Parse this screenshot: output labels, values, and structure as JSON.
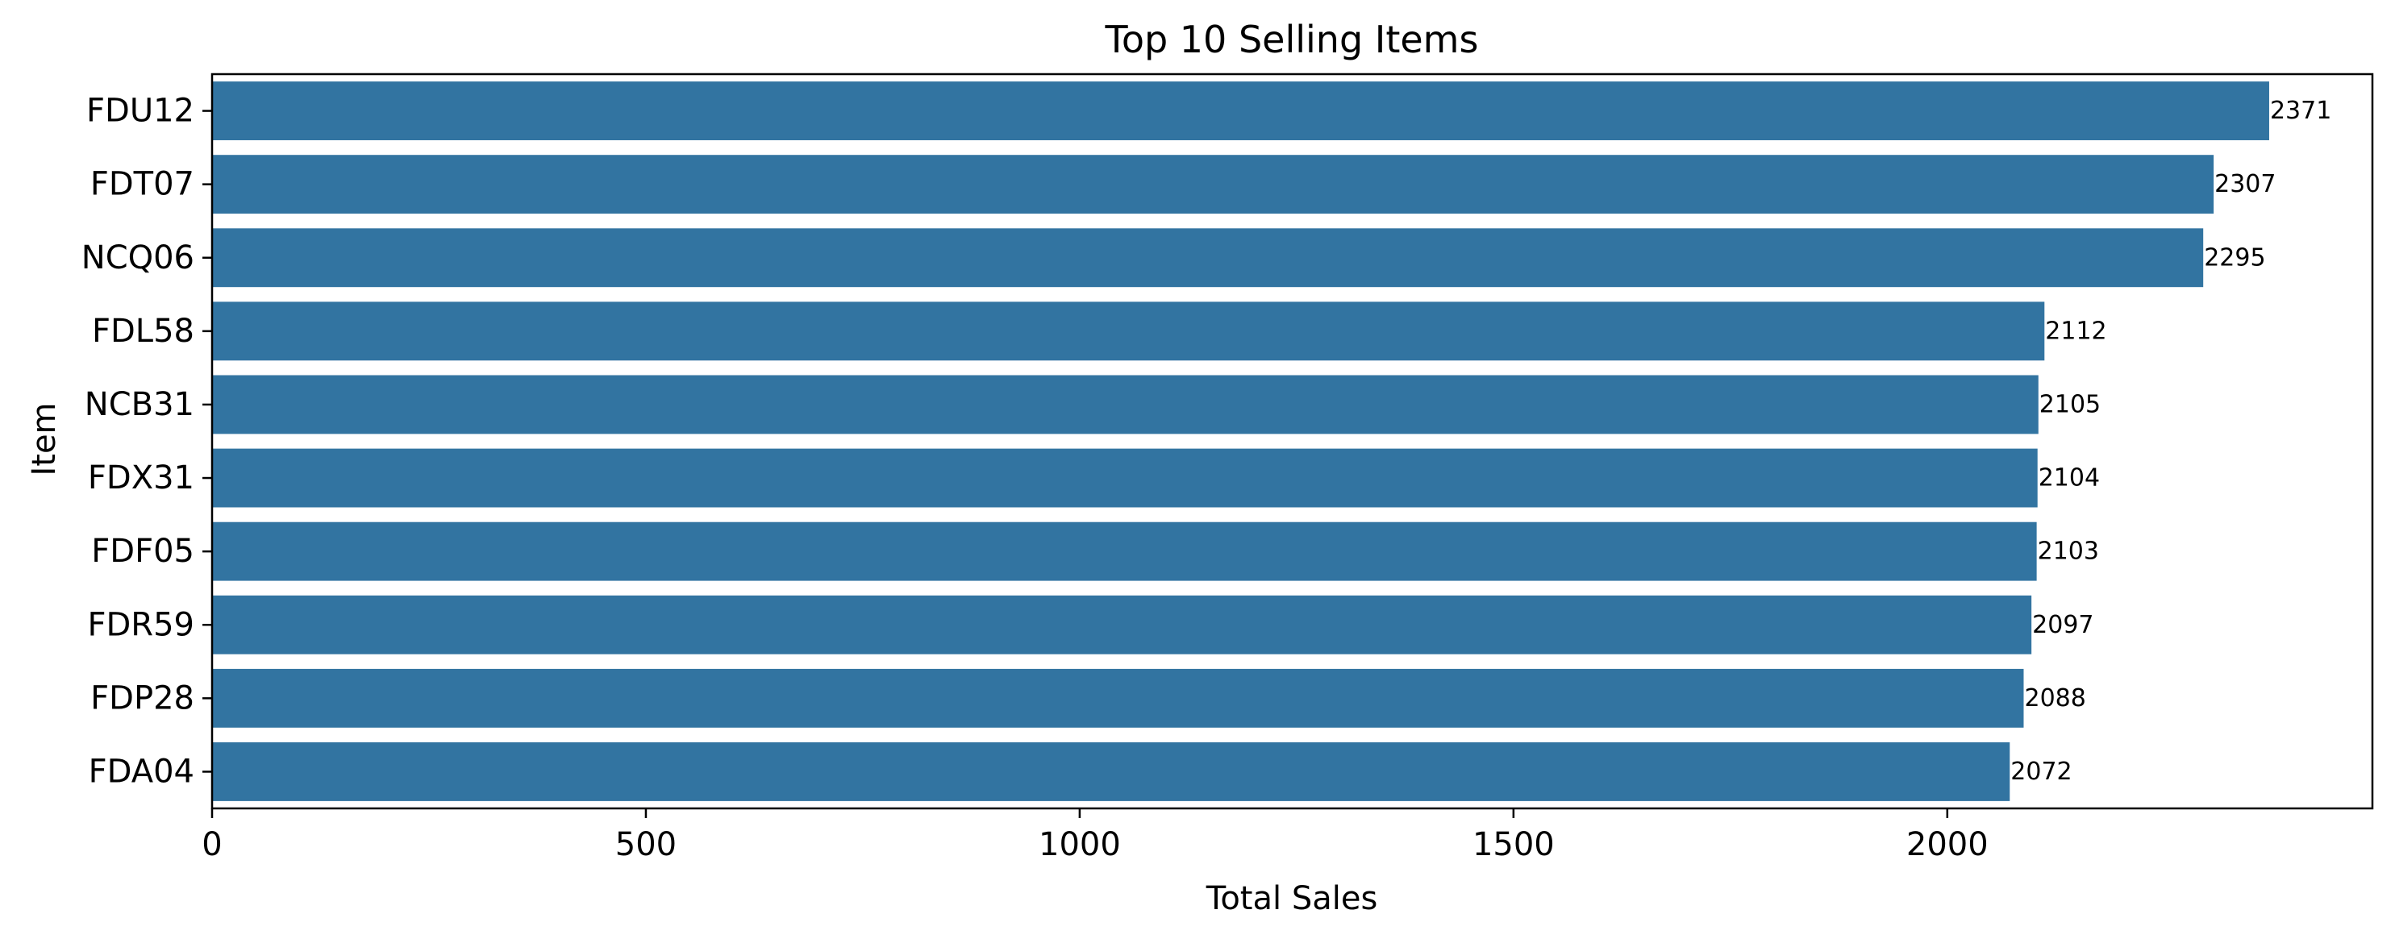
{
  "chart_data": {
    "type": "bar",
    "orientation": "horizontal",
    "title": "Top 10 Selling Items",
    "xlabel": "Total Sales",
    "ylabel": "Item",
    "categories": [
      "FDU12",
      "FDT07",
      "NCQ06",
      "FDL58",
      "NCB31",
      "FDX31",
      "FDF05",
      "FDR59",
      "FDP28",
      "FDA04"
    ],
    "values": [
      2371,
      2307,
      2295,
      2112,
      2105,
      2104,
      2103,
      2097,
      2088,
      2072
    ],
    "value_labels": [
      "2371",
      "2307",
      "2295",
      "2112",
      "2105",
      "2104",
      "2103",
      "2097",
      "2088",
      "2072"
    ],
    "xlim": [
      0,
      2490
    ],
    "x_ticks": [
      0,
      500,
      1000,
      1500,
      2000
    ],
    "x_tick_labels": [
      "0",
      "500",
      "1000",
      "1500",
      "2000"
    ],
    "bar_color": "#3274a1",
    "grid": false,
    "legend": "none"
  }
}
